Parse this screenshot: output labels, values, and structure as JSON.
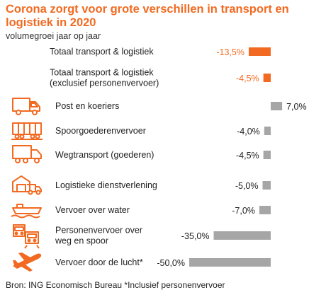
{
  "header": {
    "title": "Corona zorgt voor grote verschillen in transport en logistiek in 2020",
    "subtitle": "volumegroei jaar op jaar"
  },
  "footer": {
    "source": "Bron: ING Economisch Bureau *Inclusief personenvervoer"
  },
  "colors": {
    "highlight": "#f26a21",
    "neutral": "#a6a6a6",
    "icon": "#f26a21"
  },
  "chart_data": {
    "type": "bar",
    "orientation": "horizontal",
    "title": "Corona zorgt voor grote verschillen in transport en logistiek in 2020",
    "subtitle": "volumegroei jaar op jaar",
    "unit": "%",
    "categories": [
      {
        "label": [
          "Totaal transport & logistiek"
        ],
        "value": -13.5,
        "display": "-13,5%",
        "highlight": true,
        "icon": ""
      },
      {
        "label": [
          "Totaal transport & logistiek",
          "(exclusief personenvervoer)"
        ],
        "value": -4.5,
        "display": "-4,5%",
        "highlight": true,
        "icon": ""
      },
      {
        "label": [
          "Post en koeriers"
        ],
        "value": 7.0,
        "display": "7,0%",
        "highlight": false,
        "icon": "delivery-van-icon"
      },
      {
        "label": [
          "Spoorgoederenvervoer"
        ],
        "value": -4.0,
        "display": "-4,0%",
        "highlight": false,
        "icon": "freight-train-icon"
      },
      {
        "label": [
          "Wegtransport (goederen)"
        ],
        "value": -4.5,
        "display": "-4,5%",
        "highlight": false,
        "icon": "truck-icon"
      },
      {
        "label": [
          "Logistieke dienstverlening"
        ],
        "value": -5.0,
        "display": "-5,0%",
        "highlight": false,
        "icon": "warehouse-icon"
      },
      {
        "label": [
          "Vervoer over water"
        ],
        "value": -7.0,
        "display": "-7,0%",
        "highlight": false,
        "icon": "ship-icon"
      },
      {
        "label": [
          "Personenvervoer over",
          "weg en spoor"
        ],
        "value": -35.0,
        "display": "-35,0%",
        "highlight": false,
        "icon": "bus-train-icon"
      },
      {
        "label": [
          "Vervoer door de lucht*"
        ],
        "value": -50.0,
        "display": "-50,0%",
        "highlight": false,
        "icon": "airplane-icon"
      }
    ]
  }
}
